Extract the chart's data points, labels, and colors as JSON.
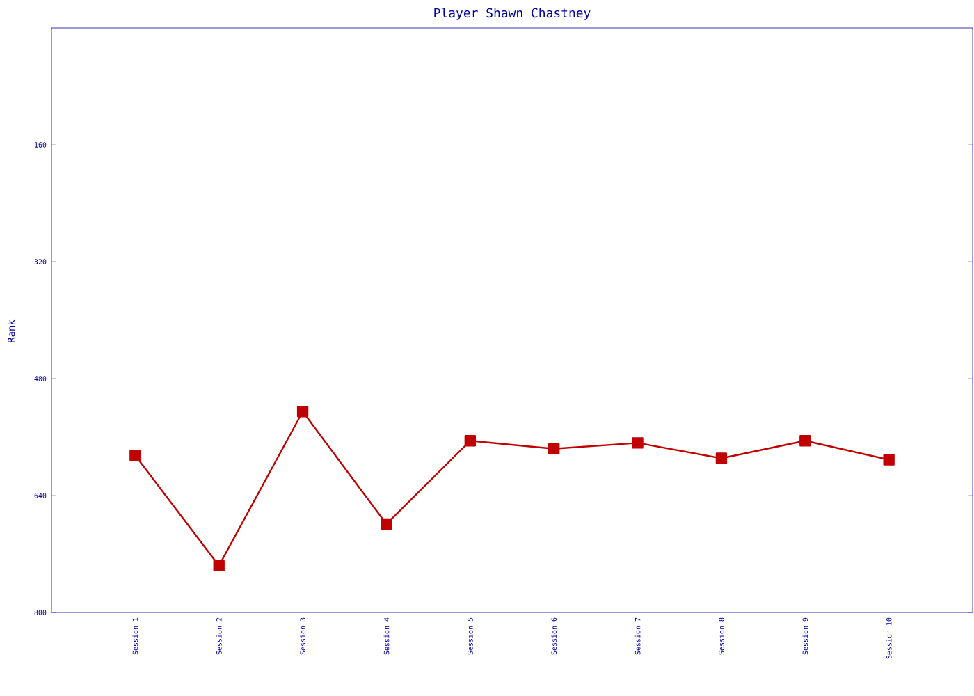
{
  "chart_data": {
    "type": "line",
    "title": "Player Shawn Chastney",
    "ylabel": "Rank",
    "categories": [
      "Session 1",
      "Session 2",
      "Session 3",
      "Session 4",
      "Session 5",
      "Session 6",
      "Session 7",
      "Session 8",
      "Session 9",
      "Session 10"
    ],
    "series": [
      {
        "color": "#c00000",
        "values": [
          585,
          736,
          525,
          679,
          565,
          576,
          568,
          589,
          565,
          591
        ]
      }
    ],
    "ylim": [
      800,
      0
    ],
    "yticks": [
      160,
      320,
      480,
      640,
      800
    ],
    "marker": "square",
    "line_style": "solid"
  }
}
